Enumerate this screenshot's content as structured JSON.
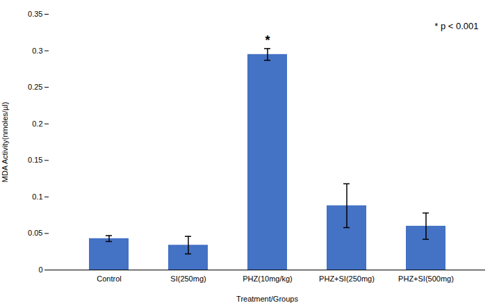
{
  "chart_data": {
    "type": "bar",
    "categories": [
      "Control",
      "SI(250mg)",
      "PHZ(10mg/kg)",
      "PHZ+SI(250mg)",
      "PHZ+SI(500mg)"
    ],
    "values": [
      0.043,
      0.034,
      0.295,
      0.088,
      0.06
    ],
    "errors": [
      0.004,
      0.012,
      0.008,
      0.03,
      0.018
    ],
    "color": "#4472C4",
    "xlabel": "Treatment/Groups",
    "ylabel": "MDA Activity(nmoles/µl)",
    "ylim": [
      0,
      0.35
    ],
    "yticks": [
      0,
      0.05,
      0.1,
      0.15,
      0.2,
      0.25,
      0.3,
      0.35
    ],
    "grid": false,
    "annotations": [
      {
        "text": "*",
        "category": "PHZ(10mg/kg)"
      },
      {
        "text": "* p < 0.001"
      }
    ]
  }
}
